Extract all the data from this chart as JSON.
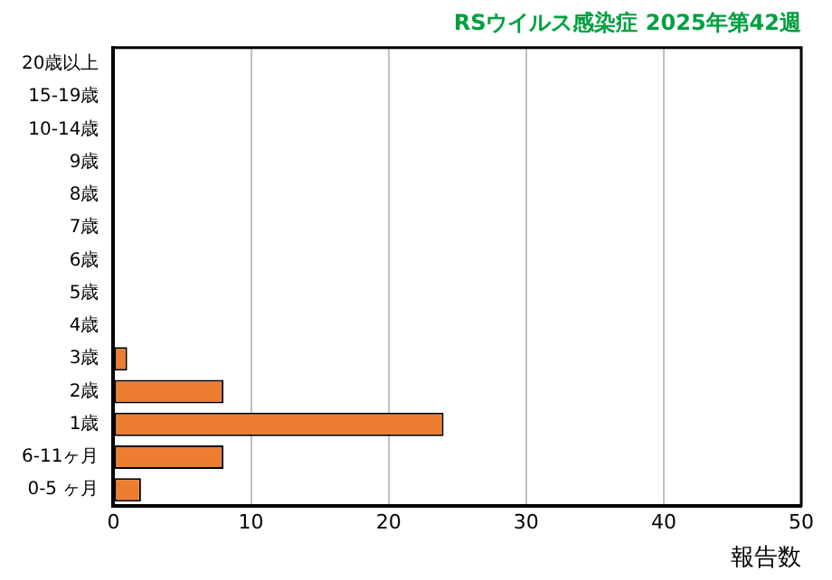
{
  "chart_data": {
    "type": "bar",
    "orientation": "horizontal",
    "title": "RSウイルス感染症 2025年第42週",
    "xlabel": "報告数",
    "categories": [
      "20歳以上",
      "15-19歳",
      "10-14歳",
      "9歳",
      "8歳",
      "7歳",
      "6歳",
      "5歳",
      "4歳",
      "3歳",
      "2歳",
      "1歳",
      "6-11ヶ月",
      "0-5 ヶ月"
    ],
    "values": [
      0,
      0,
      0,
      0,
      0,
      0,
      0,
      0,
      0,
      1,
      8,
      24,
      8,
      2
    ],
    "color": "#ed7d31",
    "xlim": [
      0,
      50
    ],
    "xticks": [
      0,
      10,
      20,
      30,
      40,
      50
    ],
    "grid": "x",
    "legend": false
  }
}
